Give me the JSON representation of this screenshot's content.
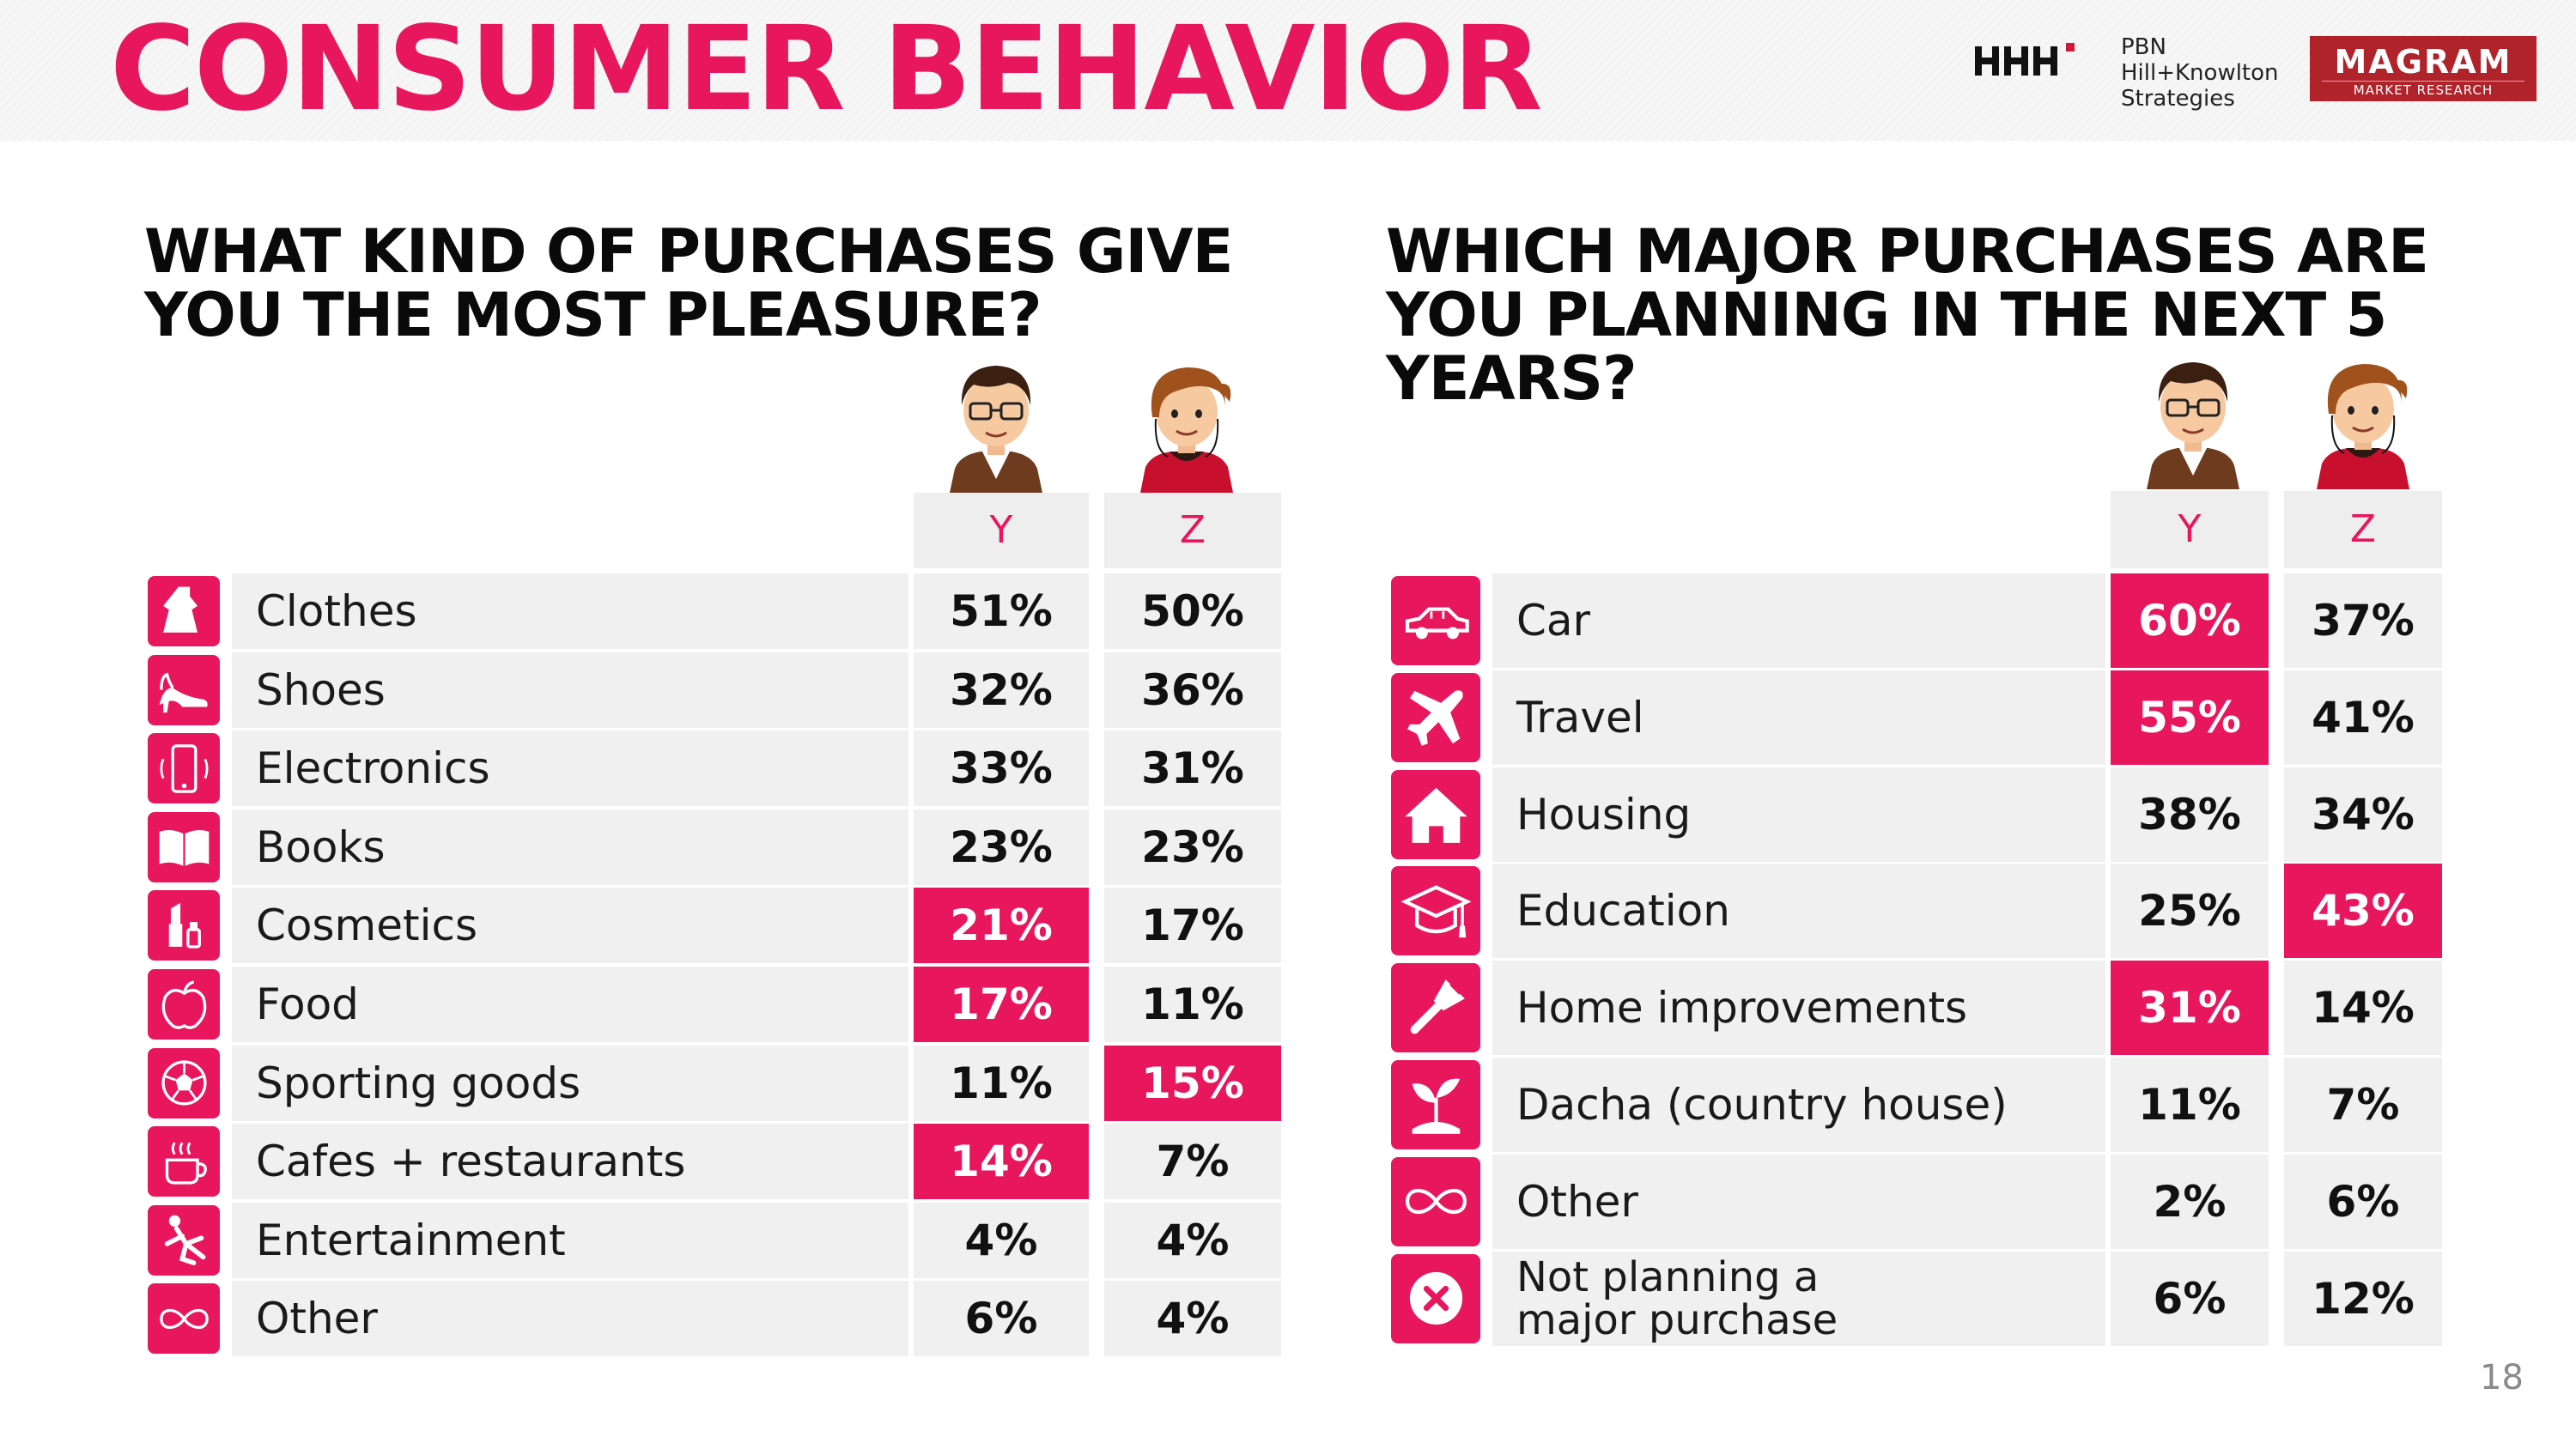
{
  "header": {
    "title": "CONSUMER BEHAVIOR",
    "logo_pbn_lines": [
      "PBN",
      "Hill+Knowlton",
      "Strategies"
    ],
    "logo_magram_name": "MAGRAM",
    "logo_magram_sub": "MARKET RESEARCH"
  },
  "colors": {
    "accent": "#e8175d",
    "cell_bg": "#f0f0f0",
    "text": "#111111"
  },
  "page_number": "18",
  "chart_data": [
    {
      "type": "table",
      "title": "WHAT KIND OF PURCHASES GIVE YOU THE MOST PLEASURE?",
      "columns": [
        "Y",
        "Z"
      ],
      "rows": [
        {
          "label": "Clothes",
          "icon": "dress-icon",
          "values": [
            "51%",
            "50%"
          ],
          "highlight": [
            false,
            false
          ]
        },
        {
          "label": "Shoes",
          "icon": "high-heel-icon",
          "values": [
            "32%",
            "36%"
          ],
          "highlight": [
            false,
            false
          ]
        },
        {
          "label": "Electronics",
          "icon": "smartphone-icon",
          "values": [
            "33%",
            "31%"
          ],
          "highlight": [
            false,
            false
          ]
        },
        {
          "label": "Books",
          "icon": "book-icon",
          "values": [
            "23%",
            "23%"
          ],
          "highlight": [
            false,
            false
          ]
        },
        {
          "label": "Cosmetics",
          "icon": "lipstick-icon",
          "values": [
            "21%",
            "17%"
          ],
          "highlight": [
            true,
            false
          ]
        },
        {
          "label": "Food",
          "icon": "apple-icon",
          "values": [
            "17%",
            "11%"
          ],
          "highlight": [
            true,
            false
          ]
        },
        {
          "label": "Sporting goods",
          "icon": "soccer-ball-icon",
          "values": [
            "11%",
            "15%"
          ],
          "highlight": [
            false,
            true
          ]
        },
        {
          "label": "Cafes + restaurants",
          "icon": "coffee-cup-icon",
          "values": [
            "14%",
            "7%"
          ],
          "highlight": [
            true,
            false
          ]
        },
        {
          "label": "Entertainment",
          "icon": "dancer-icon",
          "values": [
            "4%",
            "4%"
          ],
          "highlight": [
            false,
            false
          ]
        },
        {
          "label": "Other",
          "icon": "infinity-icon",
          "values": [
            "6%",
            "4%"
          ],
          "highlight": [
            false,
            false
          ]
        }
      ]
    },
    {
      "type": "table",
      "title": "WHICH MAJOR PURCHASES ARE YOU PLANNING IN THE NEXT 5 YEARS?",
      "columns": [
        "Y",
        "Z"
      ],
      "rows": [
        {
          "label": "Car",
          "icon": "car-icon",
          "values": [
            "60%",
            "37%"
          ],
          "highlight": [
            true,
            false
          ]
        },
        {
          "label": "Travel",
          "icon": "airplane-icon",
          "values": [
            "55%",
            "41%"
          ],
          "highlight": [
            true,
            false
          ]
        },
        {
          "label": "Housing",
          "icon": "house-icon",
          "values": [
            "38%",
            "34%"
          ],
          "highlight": [
            false,
            false
          ]
        },
        {
          "label": "Education",
          "icon": "graduation-cap-icon",
          "values": [
            "25%",
            "43%"
          ],
          "highlight": [
            false,
            true
          ]
        },
        {
          "label": "Home improvements",
          "icon": "paint-brush-icon",
          "values": [
            "31%",
            "14%"
          ],
          "highlight": [
            true,
            false
          ]
        },
        {
          "label": "Dacha (country house)",
          "icon": "plant-icon",
          "values": [
            "11%",
            "7%"
          ],
          "highlight": [
            false,
            false
          ]
        },
        {
          "label": "Other",
          "icon": "infinity-icon",
          "values": [
            "2%",
            "6%"
          ],
          "highlight": [
            false,
            false
          ]
        },
        {
          "label": "Not planning a major purchase",
          "icon": "cross-icon",
          "values": [
            "6%",
            "12%"
          ],
          "highlight": [
            false,
            false
          ]
        }
      ]
    }
  ]
}
